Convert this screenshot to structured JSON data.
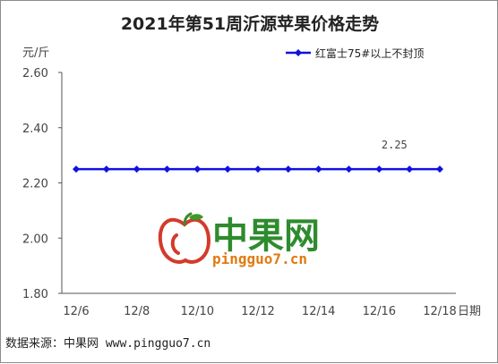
{
  "chart_data": {
    "type": "line",
    "title": "2021年第51周沂源苹果价格走势",
    "ylabel": "元/斤",
    "xlabel": "日期",
    "ylim": [
      1.8,
      2.6
    ],
    "yticks": [
      "1.80",
      "2.00",
      "2.20",
      "2.40",
      "2.60"
    ],
    "categories": [
      "12/6",
      "12/7",
      "12/8",
      "12/9",
      "12/10",
      "12/11",
      "12/12",
      "12/13",
      "12/14",
      "12/15",
      "12/16",
      "12/17",
      "12/18"
    ],
    "xtick_labels": [
      "12/6",
      "12/8",
      "12/10",
      "12/12",
      "12/14",
      "12/16",
      "12/18"
    ],
    "series": [
      {
        "name": "红富士75#以上不封顶",
        "color": "#1010e0",
        "values": [
          2.25,
          2.25,
          2.25,
          2.25,
          2.25,
          2.25,
          2.25,
          2.25,
          2.25,
          2.25,
          2.25,
          2.25,
          2.25
        ]
      }
    ],
    "data_label": "2.25",
    "grid": false,
    "legend": "top-right"
  },
  "watermark": {
    "brand": "中果网",
    "url": "pingguo7.cn"
  },
  "source_text": "数据来源：中果网 www.pingguo7.cn"
}
